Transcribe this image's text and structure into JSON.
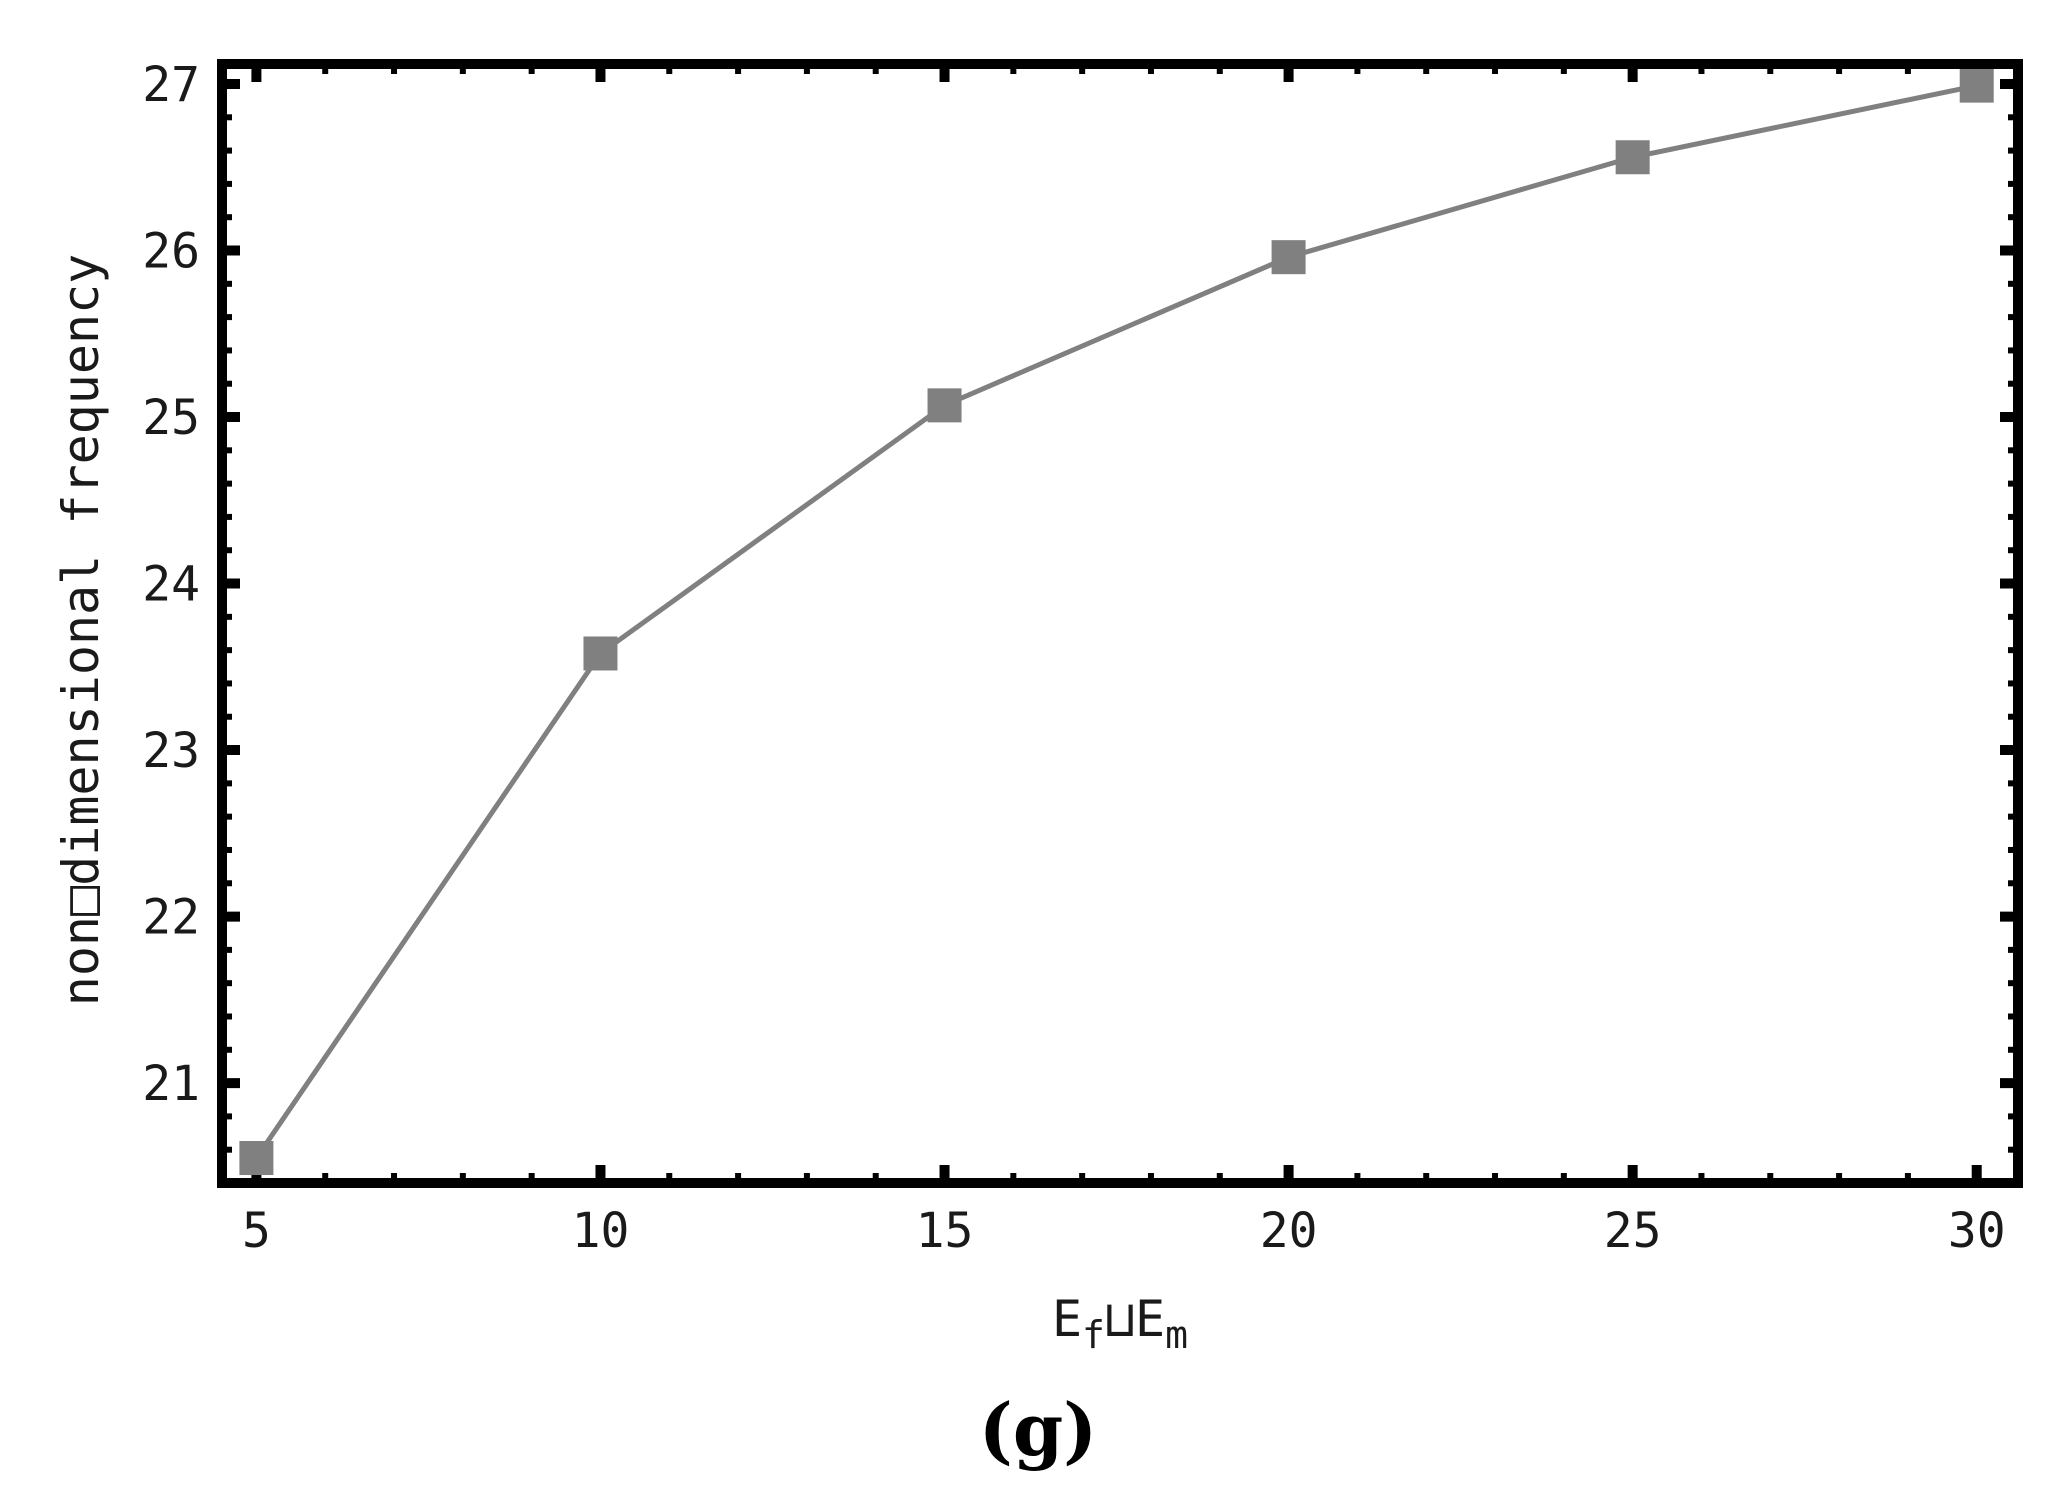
{
  "chart_data": {
    "type": "line",
    "x": [
      5,
      10,
      15,
      20,
      25,
      30
    ],
    "series": [
      {
        "values": [
          20.55,
          23.58,
          25.07,
          25.96,
          26.56,
          26.99
        ],
        "marker": "square",
        "color": "#808080"
      }
    ],
    "xlabel": {
      "base1": "E",
      "sub1": "f",
      "sep": "⊔",
      "base2": "E",
      "sub2": "m"
    },
    "ylabel": "non□dimensional frequency",
    "xlim": [
      4.5,
      30.6
    ],
    "ylim": [
      20.4,
      27.12
    ],
    "xticks": [
      5,
      10,
      15,
      20,
      25,
      30
    ],
    "yticks": [
      21,
      22,
      23,
      24,
      25,
      26,
      27
    ],
    "xtick_labels": [
      "5",
      "10",
      "15",
      "20",
      "25",
      "30"
    ],
    "ytick_labels": [
      "21",
      "22",
      "23",
      "24",
      "25",
      "26",
      "27"
    ],
    "grid": false,
    "frame_color": "#000000",
    "caption": "(g)"
  }
}
